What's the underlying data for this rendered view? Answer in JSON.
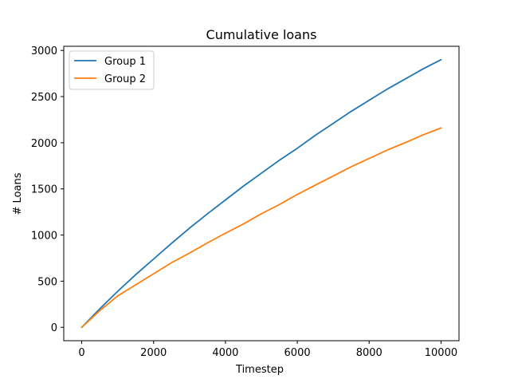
{
  "chart_data": {
    "type": "line",
    "title": "Cumulative loans",
    "xlabel": "Timestep",
    "ylabel": "# Loans",
    "xlim": [
      -500,
      10500
    ],
    "ylim": [
      -145,
      3045
    ],
    "xticks": [
      0,
      2000,
      4000,
      6000,
      8000,
      10000
    ],
    "yticks": [
      0,
      500,
      1000,
      1500,
      2000,
      2500,
      3000
    ],
    "grid": false,
    "legend_position": "top-left",
    "series": [
      {
        "name": "Group 1",
        "color": "#1f77b4",
        "x": [
          0,
          500,
          1000,
          1500,
          2000,
          2500,
          3000,
          3500,
          4000,
          4500,
          5000,
          5500,
          6000,
          6500,
          7000,
          7500,
          8000,
          8500,
          9000,
          9500,
          10000
        ],
        "y": [
          0,
          200,
          390,
          570,
          740,
          910,
          1075,
          1230,
          1380,
          1530,
          1670,
          1810,
          1940,
          2080,
          2210,
          2340,
          2460,
          2580,
          2690,
          2800,
          2900
        ]
      },
      {
        "name": "Group 2",
        "color": "#ff7f0e",
        "x": [
          0,
          500,
          1000,
          1500,
          2000,
          2500,
          3000,
          3500,
          4000,
          4500,
          5000,
          5500,
          6000,
          6500,
          7000,
          7500,
          8000,
          8500,
          9000,
          9500,
          10000
        ],
        "y": [
          0,
          180,
          340,
          460,
          580,
          700,
          805,
          915,
          1020,
          1120,
          1230,
          1330,
          1440,
          1540,
          1640,
          1740,
          1830,
          1920,
          2000,
          2085,
          2160
        ]
      }
    ]
  }
}
